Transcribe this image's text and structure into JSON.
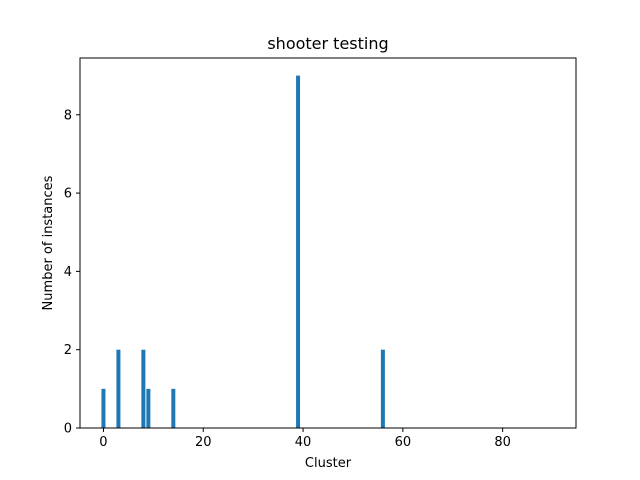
{
  "chart_data": {
    "type": "bar",
    "title": "shooter testing",
    "xlabel": "Cluster",
    "ylabel": "Number of instances",
    "x": [
      0,
      3,
      8,
      9,
      14,
      39,
      56
    ],
    "values": [
      1,
      2,
      2,
      1,
      1,
      9,
      2
    ],
    "xlim": [
      -4.7,
      94.7
    ],
    "ylim": [
      0,
      9.45
    ],
    "xticks": [
      0,
      20,
      40,
      60,
      80
    ],
    "yticks": [
      0,
      2,
      4,
      6,
      8
    ],
    "grid": false,
    "bar_color": "#1f77b4"
  }
}
